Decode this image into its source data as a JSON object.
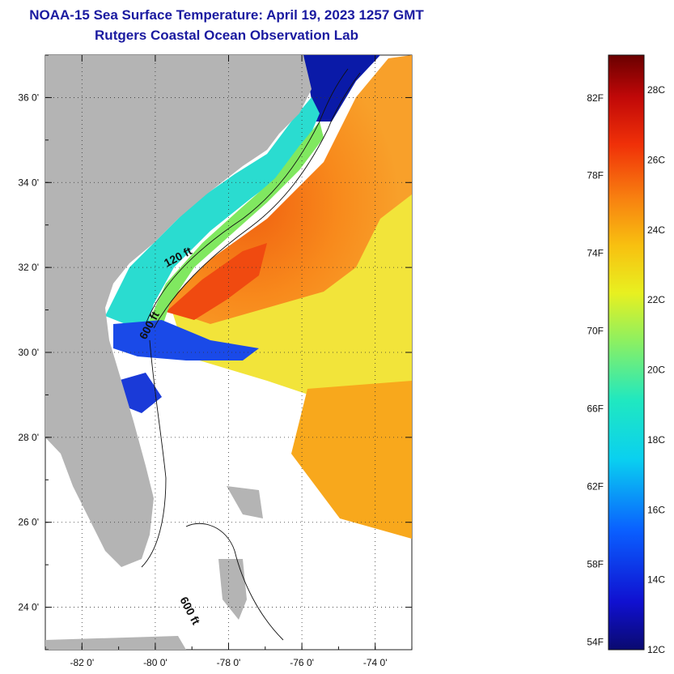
{
  "header": {
    "title": "NOAA-15 Sea Surface Temperature:  April 19, 2023 1257 GMT",
    "subtitle": "Rutgers Coastal Ocean Observation Lab"
  },
  "map": {
    "lon_range": [
      -83,
      -73
    ],
    "lat_range": [
      23,
      37
    ],
    "lon_ticks": [
      {
        "value": -82,
        "label": "-82 0'"
      },
      {
        "value": -80,
        "label": "-80 0'"
      },
      {
        "value": -78,
        "label": "-78 0'"
      },
      {
        "value": -76,
        "label": "-76 0'"
      },
      {
        "value": -74,
        "label": "-74 0'"
      }
    ],
    "lat_ticks": [
      {
        "value": 36,
        "label": "36 0'"
      },
      {
        "value": 34,
        "label": "34 0'"
      },
      {
        "value": 32,
        "label": "32 0'"
      },
      {
        "value": 30,
        "label": "30 0'"
      },
      {
        "value": 28,
        "label": "28 0'"
      },
      {
        "value": 26,
        "label": "26 0'"
      },
      {
        "value": 24,
        "label": "24 0'"
      }
    ],
    "contour_labels": [
      "120 ft",
      "600 ft",
      "600 ft"
    ],
    "colors": {
      "land": "#b4b4b4",
      "no_data": "#ffffff",
      "gridline": "#333333"
    }
  },
  "colorbar": {
    "min_c": 12,
    "max_c": 29,
    "fahrenheit_labels": [
      "82F",
      "78F",
      "74F",
      "70F",
      "66F",
      "62F",
      "58F",
      "54F"
    ],
    "celsius_labels": [
      "28C",
      "26C",
      "24C",
      "22C",
      "20C",
      "18C",
      "16C",
      "14C",
      "12C"
    ]
  }
}
